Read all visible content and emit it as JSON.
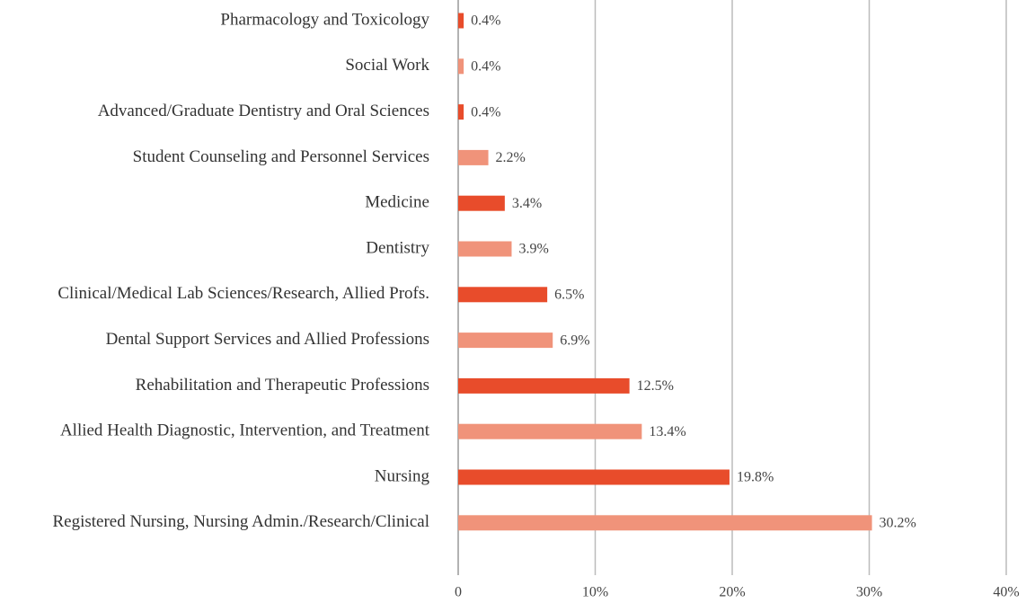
{
  "chart_data": {
    "type": "hbar",
    "categories": [
      "Pharmacology and Toxicology",
      "Social Work",
      "Advanced/Graduate Dentistry and Oral Sciences",
      "Student Counseling and Personnel Services",
      "Medicine",
      "Dentistry",
      "Clinical/Medical Lab Sciences/Research, Allied Profs.",
      "Dental Support Services and Allied Professions",
      "Rehabilitation and Therapeutic Professions",
      "Allied Health Diagnostic, Intervention, and Treatment",
      "Nursing",
      "Registered Nursing, Nursing Admin./Research/Clinical"
    ],
    "values": [
      0.4,
      0.4,
      0.4,
      2.2,
      3.4,
      3.9,
      6.5,
      6.9,
      12.5,
      13.4,
      19.8,
      30.2
    ],
    "value_labels": [
      "0.4%",
      "0.4%",
      "0.4%",
      "2.2%",
      "3.4%",
      "3.9%",
      "6.5%",
      "6.9%",
      "12.5%",
      "13.4%",
      "19.8%",
      "30.2%"
    ],
    "colors": [
      "#e84c2b",
      "#f0937a",
      "#e84c2b",
      "#f0937a",
      "#e84c2b",
      "#f0937a",
      "#e84c2b",
      "#f0937a",
      "#e84c2b",
      "#f0937a",
      "#e84c2b",
      "#f0937a"
    ],
    "xlim": [
      0,
      40
    ],
    "xticks": [
      0,
      {
        "value": 10,
        "label": "10%"
      },
      {
        "value": 20,
        "label": "20%"
      },
      {
        "value": 30,
        "label": "30%"
      },
      {
        "value": 40,
        "label": "40%"
      }
    ],
    "grid": true
  }
}
